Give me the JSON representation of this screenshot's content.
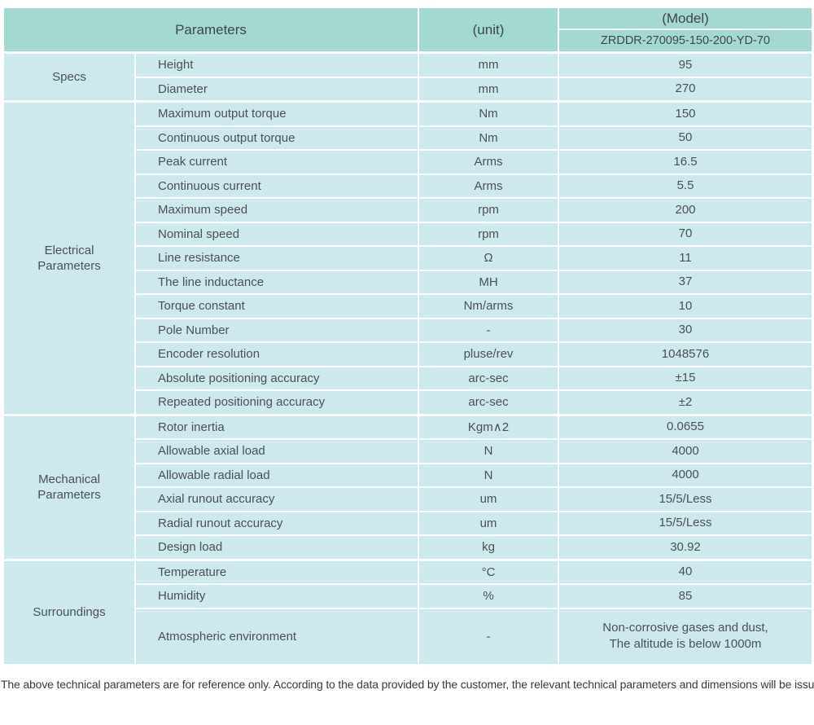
{
  "table": {
    "header": {
      "parameters_label": "Parameters",
      "unit_label": "(unit)",
      "model_label": "(Model)",
      "model_value": "ZRDDR-270095-150-200-YD-70"
    },
    "sections": [
      {
        "name": "Specs",
        "rows": [
          {
            "param": "Height",
            "unit": "mm",
            "value": "95"
          },
          {
            "param": "Diameter",
            "unit": "mm",
            "value": "270"
          }
        ]
      },
      {
        "name": "Electrical\nParameters",
        "rows": [
          {
            "param": "Maximum output torque",
            "unit": "Nm",
            "value": "150"
          },
          {
            "param": "Continuous output torque",
            "unit": "Nm",
            "value": "50"
          },
          {
            "param": "Peak current",
            "unit": "Arms",
            "value": "16.5"
          },
          {
            "param": "Continuous current",
            "unit": "Arms",
            "value": "5.5"
          },
          {
            "param": "Maximum speed",
            "unit": "rpm",
            "value": "200"
          },
          {
            "param": "Nominal speed",
            "unit": "rpm",
            "value": "70"
          },
          {
            "param": "Line resistance",
            "unit": "Ω",
            "value": "11"
          },
          {
            "param": "The line inductance",
            "unit": "MH",
            "value": "37"
          },
          {
            "param": "Torque constant",
            "unit": "Nm/arms",
            "value": "10"
          },
          {
            "param": "Pole Number",
            "unit": "-",
            "value": "30"
          },
          {
            "param": "Encoder resolution",
            "unit": "pluse/rev",
            "value": "1048576"
          },
          {
            "param": "Absolute positioning accuracy",
            "unit": "arc-sec",
            "value": "±15"
          },
          {
            "param": "Repeated positioning accuracy",
            "unit": "arc-sec",
            "value": "±2"
          }
        ]
      },
      {
        "name": "Mechanical\nParameters",
        "rows": [
          {
            "param": "Rotor inertia",
            "unit": "Kgm∧2",
            "value": "0.0655"
          },
          {
            "param": "Allowable axial load",
            "unit": "N",
            "value": "4000"
          },
          {
            "param": "Allowable radial load",
            "unit": "N",
            "value": "4000"
          },
          {
            "param": "Axial runout accuracy",
            "unit": "um",
            "value": "15/5/Less"
          },
          {
            "param": "Radial runout accuracy",
            "unit": "um",
            "value": "15/5/Less"
          },
          {
            "param": "Design load",
            "unit": "kg",
            "value": "30.92"
          }
        ]
      },
      {
        "name": "Surroundings",
        "rows": [
          {
            "param": "Temperature",
            "unit": "°C",
            "value": "40"
          },
          {
            "param": "Humidity",
            "unit": "%",
            "value": "85"
          },
          {
            "param": "Atmospheric environment",
            "unit": "-",
            "value": "Non-corrosive gases and dust,\nThe altitude is below 1000m",
            "tall": true
          }
        ]
      }
    ]
  },
  "footer": {
    "note": "The above technical parameters are for reference only. According to the data provided by the customer, the relevant technical parameters and dimensions will be issued."
  },
  "colors": {
    "header_bg": "#a4d9d1",
    "body_bg": "#cde9ee",
    "divider": "#ffffff",
    "header_text": "#3f464b",
    "body_text": "#4a5156"
  }
}
